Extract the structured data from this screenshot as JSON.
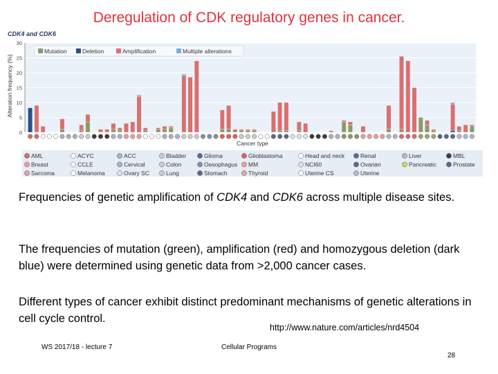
{
  "slide": {
    "title": "Deregulation of CDK regulatory genes in cancer.",
    "para1_a": "Frequencies of genetic amplification of ",
    "para1_gene1": "CDK4",
    "para1_b": " and ",
    "para1_gene2": "CDK6",
    "para1_c": " across multiple disease sites.",
    "para2": "The frequencies of mutation (green), amplification (red) and homozygous deletion (dark blue) were determined using genetic data from >2,000 cancer cases.",
    "para3": "Different types of cancer exhibit distinct predominant mechanisms of genetic alterations in cell cycle control.",
    "source": "http://www.nature.com/articles/nrd4504",
    "footer_left": "WS 2017/18 - lecture 7",
    "footer_center": "Cellular Programs",
    "page_number": "28"
  },
  "chart_data": {
    "type": "bar",
    "stacked": true,
    "panel_label": "CDK4 and CDK6",
    "ylabel": "Alteration frequency (%)",
    "xlabel": "Cancer type",
    "ylim": [
      0,
      30
    ],
    "yticks": [
      0,
      5,
      10,
      15,
      20,
      25,
      30
    ],
    "grid": true,
    "legend_position": "top-left",
    "series": [
      {
        "name": "Mutation",
        "color": "#8a9a6a"
      },
      {
        "name": "Deletion",
        "color": "#2b4f8c"
      },
      {
        "name": "Amplification",
        "color": "#d97070"
      },
      {
        "name": "Multiple alterations",
        "color": "#7eaed6"
      }
    ],
    "bars": [
      {
        "mut": 0,
        "del": 8.2,
        "amp": 0,
        "multi": 0,
        "marker": "#d07070"
      },
      {
        "mut": 0,
        "del": 0,
        "amp": 9,
        "multi": 0,
        "marker": "#d07070"
      },
      {
        "mut": 0,
        "del": 0,
        "amp": 2,
        "multi": 0,
        "marker": "#ffffff"
      },
      {
        "mut": 0,
        "del": 0,
        "amp": 0,
        "multi": 0,
        "marker": "#ffffff"
      },
      {
        "mut": 0,
        "del": 0,
        "amp": 0,
        "multi": 0,
        "marker": "#ffffff"
      },
      {
        "mut": 1,
        "del": 0,
        "amp": 3.5,
        "multi": 0,
        "marker": "#a8b3c8"
      },
      {
        "mut": 0,
        "del": 0,
        "amp": 0,
        "multi": 0,
        "marker": "#a8b3c8"
      },
      {
        "mut": 0,
        "del": 0,
        "amp": 0,
        "multi": 0,
        "marker": "#a8b3c8"
      },
      {
        "mut": 0.5,
        "del": 0,
        "amp": 2,
        "multi": 0,
        "marker": "#cccccc"
      },
      {
        "mut": 3.5,
        "del": 0,
        "amp": 2.5,
        "multi": 0,
        "marker": "#cccccc"
      },
      {
        "mut": 0,
        "del": 0,
        "amp": 0,
        "multi": 0,
        "marker": "#3c3c3c"
      },
      {
        "mut": 0,
        "del": 0,
        "amp": 1,
        "multi": 0,
        "marker": "#3c3c3c"
      },
      {
        "mut": 0,
        "del": 0,
        "amp": 1,
        "multi": 0,
        "marker": "#3c3c3c"
      },
      {
        "mut": 1,
        "del": 0,
        "amp": 2,
        "multi": 0,
        "marker": "#a8b3c8"
      },
      {
        "mut": 0.5,
        "del": 0,
        "amp": 1,
        "multi": 0,
        "marker": "#a8b3c8"
      },
      {
        "mut": 0,
        "del": 0,
        "amp": 3,
        "multi": 0,
        "marker": "#e8a0a0"
      },
      {
        "mut": 0,
        "del": 0,
        "amp": 3.5,
        "multi": 0,
        "marker": "#e8a0a0"
      },
      {
        "mut": 0,
        "del": 0,
        "amp": 12,
        "multi": 0.5,
        "marker": "#e8a0a0"
      },
      {
        "mut": 0.5,
        "del": 0,
        "amp": 1,
        "multi": 0,
        "marker": "#ffffff"
      },
      {
        "mut": 0,
        "del": 0,
        "amp": 0,
        "multi": 0,
        "marker": "#ffffff"
      },
      {
        "mut": 1,
        "del": 0,
        "amp": 0.5,
        "multi": 0,
        "marker": "#ffffff"
      },
      {
        "mut": 1,
        "del": 0,
        "amp": 1,
        "multi": 0,
        "marker": "#a8b3c8"
      },
      {
        "mut": 1.5,
        "del": 0,
        "amp": 0.5,
        "multi": 0,
        "marker": "#a8b3c8"
      },
      {
        "mut": 0,
        "del": 0,
        "amp": 0,
        "multi": 0,
        "marker": "#a8b3c8"
      },
      {
        "mut": 0,
        "del": 0,
        "amp": 19,
        "multi": 0.5,
        "marker": "#cccccc"
      },
      {
        "mut": 0,
        "del": 0,
        "amp": 18.5,
        "multi": 0,
        "marker": "#cccccc"
      },
      {
        "mut": 0,
        "del": 0,
        "amp": 24,
        "multi": 0,
        "marker": "#cccccc"
      },
      {
        "mut": 0,
        "del": 0,
        "amp": 0,
        "multi": 0,
        "marker": "#8a8fa8"
      },
      {
        "mut": 0,
        "del": 0,
        "amp": 0,
        "multi": 0,
        "marker": "#8a8fa8"
      },
      {
        "mut": 0,
        "del": 0,
        "amp": 0,
        "multi": 0,
        "marker": "#8a8fa8"
      },
      {
        "mut": 1,
        "del": 0,
        "amp": 6.5,
        "multi": 0,
        "marker": "#e06060"
      },
      {
        "mut": 1,
        "del": 0,
        "amp": 8,
        "multi": 0,
        "marker": "#e06060"
      },
      {
        "mut": 0,
        "del": 0,
        "amp": 1,
        "multi": 0,
        "marker": "#e06060"
      },
      {
        "mut": 0.5,
        "del": 0,
        "amp": 0.5,
        "multi": 0,
        "marker": "#cccccc"
      },
      {
        "mut": 0.5,
        "del": 0,
        "amp": 0.5,
        "multi": 0,
        "marker": "#cccccc"
      },
      {
        "mut": 0.5,
        "del": 0,
        "amp": 0.5,
        "multi": 0,
        "marker": "#cccccc"
      },
      {
        "mut": 0,
        "del": 0,
        "amp": 0,
        "multi": 0,
        "marker": "#ffffff"
      },
      {
        "mut": 0,
        "del": 0,
        "amp": 0,
        "multi": 0,
        "marker": "#ffffff"
      },
      {
        "mut": 0,
        "del": 0,
        "amp": 7,
        "multi": 0,
        "marker": "#5a6a8a"
      },
      {
        "mut": 0.5,
        "del": 0,
        "amp": 9.5,
        "multi": 0,
        "marker": "#5a6a8a"
      },
      {
        "mut": 0.5,
        "del": 0,
        "amp": 9.5,
        "multi": 0,
        "marker": "#5a6a8a"
      },
      {
        "mut": 0,
        "del": 0,
        "amp": 0,
        "multi": 0,
        "marker": "#dde4ee"
      },
      {
        "mut": 0.5,
        "del": 0,
        "amp": 3,
        "multi": 0,
        "marker": "#dde4ee"
      },
      {
        "mut": 0,
        "del": 0,
        "amp": 3,
        "multi": 0,
        "marker": "#dde4ee"
      },
      {
        "mut": 0,
        "del": 0,
        "amp": 0,
        "multi": 0,
        "marker": "#3c3c3c"
      },
      {
        "mut": 0,
        "del": 0,
        "amp": 0,
        "multi": 0,
        "marker": "#3c3c3c"
      },
      {
        "mut": 0,
        "del": 0,
        "amp": 0,
        "multi": 0,
        "marker": "#3c3c3c"
      },
      {
        "mut": 0,
        "del": 0,
        "amp": 0.5,
        "multi": 0,
        "marker": "#a8b3c8"
      },
      {
        "mut": 0,
        "del": 0,
        "amp": 0,
        "multi": 0,
        "marker": "#a8b3c8"
      },
      {
        "mut": 3.5,
        "del": 0,
        "amp": 0.5,
        "multi": 0,
        "marker": "#8a9a6a"
      },
      {
        "mut": 2.5,
        "del": 0,
        "amp": 1,
        "multi": 0,
        "marker": "#8a9a6a"
      },
      {
        "mut": 0,
        "del": 0,
        "amp": 0,
        "multi": 0,
        "marker": "#8a9a6a"
      },
      {
        "mut": 0,
        "del": 0,
        "amp": 2,
        "multi": 0,
        "marker": "#e8a0a0"
      },
      {
        "mut": 0,
        "del": 0,
        "amp": 0,
        "multi": 0,
        "marker": "#e8a0a0"
      },
      {
        "mut": 0,
        "del": 0,
        "amp": 0,
        "multi": 0,
        "marker": "#e8a0a0"
      },
      {
        "mut": 0,
        "del": 0,
        "amp": 0,
        "multi": 0,
        "marker": "#e8a0a0"
      },
      {
        "mut": 1,
        "del": 0,
        "amp": 8,
        "multi": 0,
        "marker": "#b0b8c8"
      },
      {
        "mut": 0,
        "del": 0,
        "amp": 0,
        "multi": 0,
        "marker": "#b0b8c8"
      },
      {
        "mut": 1,
        "del": 0,
        "amp": 24.5,
        "multi": 0,
        "marker": "#d07070"
      },
      {
        "mut": 0,
        "del": 0,
        "amp": 24,
        "multi": 0,
        "marker": "#d07070"
      },
      {
        "mut": 0,
        "del": 0,
        "amp": 15,
        "multi": 0,
        "marker": "#d07070"
      },
      {
        "mut": 5,
        "del": 0,
        "amp": 0,
        "multi": 0,
        "marker": "#9aa86a"
      },
      {
        "mut": 2.5,
        "del": 0,
        "amp": 1.5,
        "multi": 0,
        "marker": "#9aa86a"
      },
      {
        "mut": 0.5,
        "del": 0,
        "amp": 0.5,
        "multi": 0,
        "marker": "#9aa86a"
      },
      {
        "mut": 0,
        "del": 0,
        "amp": 0,
        "multi": 0,
        "marker": "#5a6a8a"
      },
      {
        "mut": 0,
        "del": 0,
        "amp": 0,
        "multi": 0,
        "marker": "#5a6a8a"
      },
      {
        "mut": 0,
        "del": 0.5,
        "amp": 9,
        "multi": 0.5,
        "marker": "#5a6a8a"
      },
      {
        "mut": 0.5,
        "del": 0,
        "amp": 1.5,
        "multi": 0,
        "marker": "#b0b8d0"
      },
      {
        "mut": 0,
        "del": 0,
        "amp": 2.5,
        "multi": 0,
        "marker": "#b0b8d0"
      },
      {
        "mut": 2,
        "del": 0,
        "amp": 0.5,
        "multi": 0,
        "marker": "#b0b8d0"
      }
    ],
    "markers_legend": [
      [
        "AML",
        "ACYC",
        "ACC",
        "Bladder",
        "Glioma",
        "Glioblastoma",
        "Head and neck",
        "Renal",
        "Liver",
        "MBL"
      ],
      [
        "Breast",
        "CCLE",
        "Cervical",
        "Colon",
        "Oesophagus",
        "MM",
        "NCI60",
        "Ovarian",
        "Pancreatic",
        "Prostate"
      ],
      [
        "Sarcoma",
        "Melanoma",
        "Ovary SC",
        "Lung",
        "Stomach",
        "Thyroid",
        "Uterine CS",
        "Uterine",
        "",
        ""
      ]
    ],
    "marker_colors": [
      [
        "#d07070",
        "#ffffff",
        "#a8b3c8",
        "#cccccc",
        "#5a6a8a",
        "#e06060",
        "#ffffff",
        "#5a6a8a",
        "#b0b8c8",
        "#3c3c3c"
      ],
      [
        "#e8a0a0",
        "#ffffff",
        "#a8b3c8",
        "#cccccc",
        "#8a8fa8",
        "#e8a0a0",
        "#dde4ee",
        "#5a6a8a",
        "#c8d86a",
        "#5a6a8a"
      ],
      [
        "#e8a0a0",
        "#ffffff",
        "#dde4ee",
        "#cccccc",
        "#5a6a8a",
        "#e8a0a0",
        "#ffffff",
        "#b0b8d0",
        "",
        ""
      ]
    ]
  }
}
